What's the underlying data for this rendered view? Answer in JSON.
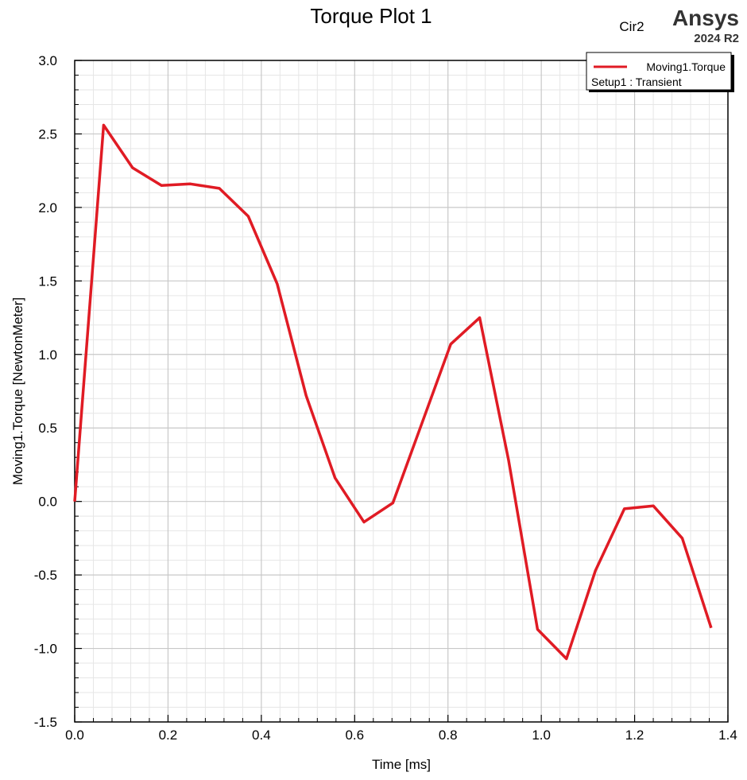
{
  "brand": {
    "design": "Cir2",
    "name": "Ansys",
    "version": "2024 R2"
  },
  "legend": {
    "series_label": "Moving1.Torque",
    "setup_label": "Setup1 : Transient"
  },
  "colors": {
    "series": "#e01b24",
    "major_grid": "#c8c8c8",
    "minor_grid": "#e6e6e6"
  },
  "chart_data": {
    "type": "line",
    "title": "Torque Plot 1",
    "xlabel": "Time [ms]",
    "ylabel": "Moving1.Torque [NewtonMeter]",
    "xlim": [
      0,
      1.4
    ],
    "ylim": [
      -1.5,
      3.0
    ],
    "x_ticks": [
      "0.0",
      "0.2",
      "0.4",
      "0.6",
      "0.8",
      "1.0",
      "1.2",
      "1.4"
    ],
    "y_ticks": [
      "3.0",
      "2.5",
      "2.0",
      "1.5",
      "1.0",
      "0.5",
      "0.0",
      "-0.5",
      "-1.0",
      "-1.5"
    ],
    "grid": true,
    "legend_position": "top-right",
    "series": [
      {
        "name": "Moving1.Torque",
        "x": [
          0.0,
          0.062,
          0.124,
          0.186,
          0.248,
          0.31,
          0.372,
          0.434,
          0.496,
          0.558,
          0.62,
          0.682,
          0.744,
          0.806,
          0.868,
          0.93,
          0.992,
          1.054,
          1.116,
          1.178,
          1.24,
          1.302,
          1.364
        ],
        "y": [
          0.0,
          2.56,
          2.27,
          2.15,
          2.16,
          2.13,
          1.94,
          1.48,
          0.72,
          0.16,
          -0.14,
          -0.01,
          0.53,
          1.07,
          1.25,
          0.28,
          -0.87,
          -1.07,
          -0.47,
          -0.05,
          -0.03,
          -0.25,
          -0.86
        ]
      }
    ]
  }
}
